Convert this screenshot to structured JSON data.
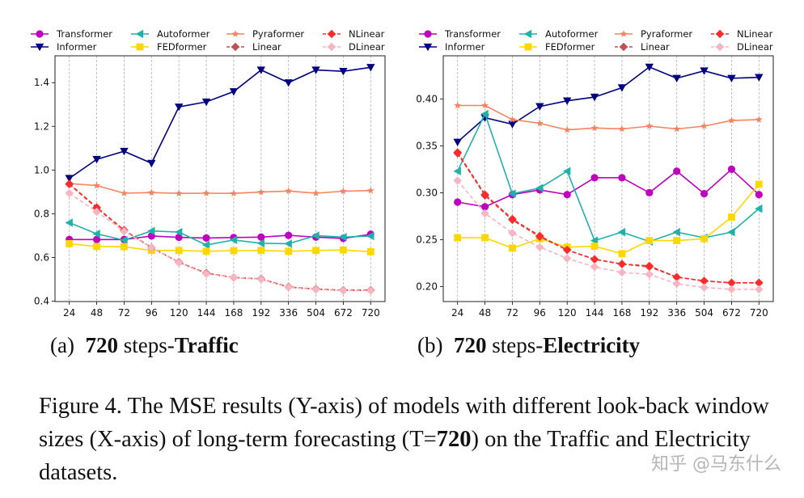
{
  "chart_data": [
    {
      "type": "line",
      "categories": [
        "24",
        "48",
        "72",
        "96",
        "120",
        "144",
        "168",
        "192",
        "336",
        "504",
        "672",
        "720"
      ],
      "ylim": [
        0.398,
        1.523
      ],
      "yticks": [
        0.4,
        0.6,
        0.8,
        1.0,
        1.2,
        1.4
      ],
      "grid": "vertical dashed",
      "legend_placement": "top",
      "series": [
        {
          "name": "Transformer",
          "color": "#bf00bf",
          "marker": "circle",
          "dashed": false,
          "values": [
            0.682,
            0.682,
            0.682,
            0.698,
            0.692,
            0.689,
            0.691,
            0.693,
            0.701,
            0.693,
            0.687,
            0.706
          ]
        },
        {
          "name": "Informer",
          "color": "#000080",
          "marker": "triangle-down",
          "dashed": false,
          "values": [
            0.962,
            1.049,
            1.086,
            1.031,
            1.289,
            1.312,
            1.359,
            1.458,
            1.4,
            1.458,
            1.452,
            1.47
          ]
        },
        {
          "name": "Autoformer",
          "color": "#20b2aa",
          "marker": "triangle-left",
          "dashed": false,
          "values": [
            0.759,
            0.708,
            0.679,
            0.721,
            0.716,
            0.657,
            0.68,
            0.665,
            0.663,
            0.7,
            0.693,
            0.698
          ]
        },
        {
          "name": "FEDformer",
          "color": "#ffd700",
          "marker": "square",
          "dashed": false,
          "values": [
            0.663,
            0.65,
            0.649,
            0.632,
            0.632,
            0.628,
            0.631,
            0.632,
            0.628,
            0.632,
            0.634,
            0.626
          ]
        },
        {
          "name": "Pyraformer",
          "color": "#f4845f",
          "marker": "star",
          "dashed": false,
          "values": [
            0.938,
            0.929,
            0.894,
            0.897,
            0.893,
            0.894,
            0.893,
            0.899,
            0.904,
            0.894,
            0.903,
            0.906
          ]
        },
        {
          "name": "Linear",
          "color": "#c44e52",
          "marker": "diamond",
          "dashed": true,
          "values": [
            0.935,
            0.826,
            0.724,
            0.645,
            0.577,
            0.527,
            0.508,
            0.501,
            0.464,
            0.454,
            0.449,
            0.449
          ]
        },
        {
          "name": "NLinear",
          "color": "#ff2a2a",
          "marker": "diamond",
          "dashed": true,
          "values": [
            0.937,
            0.829,
            0.725,
            0.645,
            0.578,
            0.528,
            0.508,
            0.502,
            0.465,
            0.455,
            0.45,
            0.45
          ]
        },
        {
          "name": "DLinear",
          "color": "#f4b6c2",
          "marker": "diamond",
          "dashed": true,
          "values": [
            0.894,
            0.809,
            0.72,
            0.645,
            0.576,
            0.525,
            0.508,
            0.5,
            0.463,
            0.453,
            0.448,
            0.448
          ]
        }
      ]
    },
    {
      "type": "line",
      "categories": [
        "24",
        "48",
        "72",
        "96",
        "120",
        "144",
        "168",
        "192",
        "336",
        "504",
        "672",
        "720"
      ],
      "ylim": [
        0.184,
        0.446
      ],
      "yticks": [
        0.2,
        0.25,
        0.3,
        0.35,
        0.4
      ],
      "grid": "vertical dashed",
      "legend_placement": "top",
      "series": [
        {
          "name": "Transformer",
          "color": "#bf00bf",
          "marker": "circle",
          "dashed": false,
          "values": [
            0.29,
            0.285,
            0.298,
            0.303,
            0.298,
            0.316,
            0.316,
            0.3,
            0.323,
            0.299,
            0.325,
            0.298
          ]
        },
        {
          "name": "Informer",
          "color": "#000080",
          "marker": "triangle-down",
          "dashed": false,
          "values": [
            0.354,
            0.38,
            0.373,
            0.392,
            0.398,
            0.402,
            0.412,
            0.434,
            0.422,
            0.43,
            0.422,
            0.423
          ]
        },
        {
          "name": "Autoformer",
          "color": "#20b2aa",
          "marker": "triangle-left",
          "dashed": false,
          "values": [
            0.323,
            0.384,
            0.299,
            0.305,
            0.323,
            0.249,
            0.258,
            0.248,
            0.258,
            0.252,
            0.258,
            0.283
          ]
        },
        {
          "name": "FEDformer",
          "color": "#ffd700",
          "marker": "square",
          "dashed": false,
          "values": [
            0.252,
            0.252,
            0.241,
            0.251,
            0.242,
            0.243,
            0.235,
            0.249,
            0.249,
            0.251,
            0.274,
            0.309
          ]
        },
        {
          "name": "Pyraformer",
          "color": "#f4845f",
          "marker": "star",
          "dashed": false,
          "values": [
            0.393,
            0.393,
            0.378,
            0.374,
            0.367,
            0.369,
            0.368,
            0.371,
            0.368,
            0.371,
            0.377,
            0.378
          ]
        },
        {
          "name": "Linear",
          "color": "#c44e52",
          "marker": "diamond",
          "dashed": true,
          "values": [
            0.342,
            0.297,
            0.271,
            0.253,
            0.239,
            0.229,
            0.224,
            0.221,
            0.21,
            0.206,
            0.204,
            0.204
          ]
        },
        {
          "name": "NLinear",
          "color": "#ff2a2a",
          "marker": "diamond",
          "dashed": true,
          "values": [
            0.343,
            0.298,
            0.272,
            0.254,
            0.239,
            0.229,
            0.224,
            0.222,
            0.21,
            0.206,
            0.204,
            0.204
          ]
        },
        {
          "name": "DLinear",
          "color": "#f4b6c2",
          "marker": "diamond",
          "dashed": true,
          "values": [
            0.313,
            0.278,
            0.257,
            0.242,
            0.23,
            0.221,
            0.215,
            0.213,
            0.203,
            0.199,
            0.197,
            0.197
          ]
        }
      ]
    }
  ],
  "subcaptions": {
    "a": {
      "prefix": "(a)",
      "num": "720",
      "mid": " steps-",
      "name": "Traffic"
    },
    "b": {
      "prefix": "(b)",
      "num": "720",
      "mid": " steps-",
      "name": "Electricity"
    }
  },
  "caption": {
    "part1": "Figure 4. The MSE results (Y-axis) of models with different look-back window sizes (X-axis) of long-term forecasting (T=",
    "bold": "720",
    "part2": ") on the Traffic and Electricity datasets."
  },
  "watermark": "知乎 @马东什么"
}
